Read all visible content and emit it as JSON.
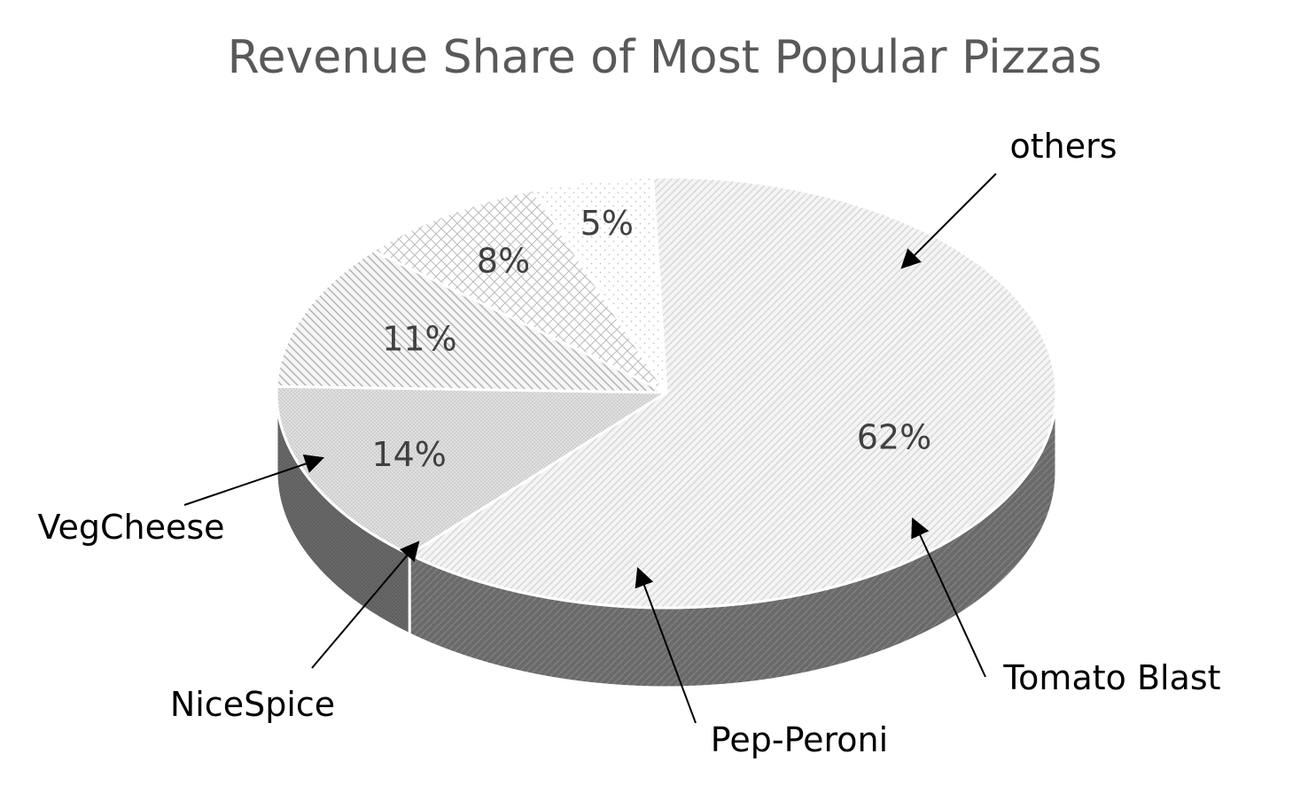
{
  "chart_data": {
    "type": "pie",
    "title": "Revenue Share of Most Popular Pizzas",
    "categories": [
      "others",
      "Tomato Blast",
      "Pep-Peroni",
      "NiceSpice",
      "VegCheese"
    ],
    "values": [
      62,
      14,
      11,
      8,
      5
    ],
    "value_labels": [
      "62%",
      "14%",
      "11%",
      "8%",
      "5%"
    ],
    "data_labels": "percent inside slices",
    "category_labels": "outside with arrows",
    "legend": "none",
    "style": "3d"
  }
}
